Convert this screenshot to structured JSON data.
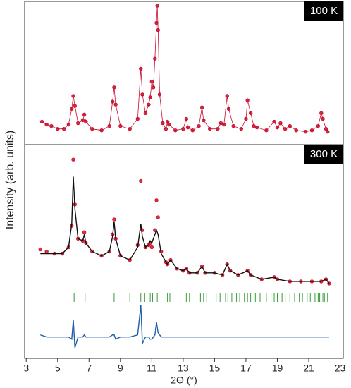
{
  "chart_data": [
    {
      "type": "scatter",
      "annotation": "100 K",
      "xlim": [
        2.9,
        23.2
      ],
      "ylim": [
        0,
        100
      ],
      "x": [
        4.0,
        4.3,
        4.6,
        5.0,
        5.4,
        5.7,
        5.9,
        6.0,
        6.1,
        6.3,
        6.6,
        6.7,
        6.8,
        7.2,
        7.8,
        8.3,
        8.5,
        8.6,
        8.7,
        9.0,
        9.6,
        10.1,
        10.3,
        10.4,
        10.6,
        10.8,
        10.9,
        11.0,
        11.1,
        11.2,
        11.3,
        11.35,
        11.4,
        11.5,
        11.7,
        11.9,
        12.0,
        12.1,
        12.5,
        13.0,
        13.2,
        13.3,
        13.6,
        14.0,
        14.2,
        14.3,
        14.7,
        15.2,
        15.4,
        15.6,
        15.8,
        15.9,
        16.2,
        16.7,
        17.0,
        17.1,
        17.3,
        17.5,
        17.7,
        18.3,
        18.8,
        19.0,
        19.2,
        19.5,
        19.8,
        20.2,
        20.8,
        21.2,
        21.6,
        21.8,
        21.9,
        22.1,
        22.2
      ],
      "series": [
        {
          "mode": "markers+lines",
          "color": "#c8102e",
          "values": [
            16,
            14,
            13,
            11,
            11,
            14,
            25,
            34,
            27,
            15,
            17,
            21,
            16,
            11,
            10,
            13,
            30,
            40,
            28,
            13,
            11,
            18,
            53,
            35,
            22,
            28,
            33,
            44,
            40,
            60,
            85,
            97,
            80,
            35,
            15,
            11,
            16,
            14,
            10,
            11,
            18,
            12,
            10,
            13,
            26,
            17,
            11,
            11,
            15,
            14,
            34,
            25,
            13,
            11,
            18,
            31,
            22,
            13,
            12,
            10,
            16,
            12,
            15,
            11,
            13,
            10,
            9,
            10,
            13,
            22,
            18,
            11,
            9
          ]
        }
      ]
    },
    {
      "type": "scatter",
      "annotation": "300 K",
      "xlabel": "2Θ (°)",
      "ylabel": "Intensity (arb. units)",
      "xlim": [
        2.9,
        23.2
      ],
      "xticks": [
        3,
        5,
        7,
        9,
        11,
        13,
        15,
        17,
        19,
        21,
        23
      ],
      "ylim": [
        0,
        100
      ],
      "x": [
        3.9,
        4.3,
        4.8,
        5.3,
        5.7,
        5.9,
        6.0,
        6.1,
        6.3,
        6.6,
        6.7,
        6.8,
        7.2,
        7.8,
        8.3,
        8.5,
        8.6,
        8.7,
        9.0,
        9.6,
        10.1,
        10.3,
        10.4,
        10.6,
        10.8,
        10.9,
        11.0,
        11.2,
        11.3,
        11.4,
        11.6,
        11.9,
        12.0,
        12.2,
        12.6,
        13.0,
        13.2,
        13.4,
        13.9,
        14.2,
        14.4,
        15.0,
        15.5,
        15.8,
        16.0,
        16.5,
        17.1,
        17.3,
        18.0,
        18.8,
        19.0,
        19.8,
        20.5,
        21.2,
        21.8,
        22.1,
        22.3
      ],
      "series": [
        {
          "mode": "markers",
          "color": "#d0142c",
          "values": [
            51,
            50,
            49,
            49,
            52,
            62,
            93,
            72,
            56,
            55,
            59,
            54,
            50,
            48,
            50,
            58,
            65,
            56,
            48,
            46,
            53,
            83,
            60,
            52,
            53,
            54,
            52,
            60,
            74,
            66,
            50,
            45,
            44,
            46,
            42,
            41,
            42,
            40,
            40,
            43,
            40,
            40,
            39,
            44,
            41,
            39,
            41,
            39,
            37,
            38,
            37,
            36,
            36,
            36,
            36,
            37,
            35
          ]
        },
        {
          "mode": "lines",
          "color": "#111111",
          "values": [
            49,
            49,
            49,
            49,
            52,
            63,
            85,
            70,
            56,
            55,
            58,
            54,
            50,
            48,
            50,
            57,
            64,
            56,
            48,
            46,
            52,
            63,
            57,
            52,
            53,
            55,
            54,
            58,
            60,
            58,
            49,
            45,
            44,
            46,
            42,
            41,
            42,
            40,
            40,
            43,
            40,
            40,
            39,
            44,
            41,
            39,
            41,
            39,
            37,
            38,
            37,
            36,
            36,
            36,
            36,
            37,
            35
          ]
        },
        {
          "mode": "lines",
          "color": "#1f5fa8",
          "values": [
            11,
            10,
            10,
            10,
            10,
            9,
            18,
            5,
            10,
            10,
            11,
            10,
            10,
            10,
            10,
            11,
            11,
            9,
            10,
            10,
            11,
            25,
            7,
            10,
            10,
            9,
            9,
            11,
            17,
            12,
            10,
            10,
            10,
            10,
            10,
            10,
            10,
            10,
            10,
            10,
            10,
            10,
            10,
            10,
            10,
            10,
            10,
            10,
            10,
            10,
            10,
            10,
            10,
            10,
            10,
            10,
            10
          ]
        }
      ],
      "reflections": {
        "color": "#3a9a3a",
        "x": [
          6.05,
          6.75,
          8.6,
          9.6,
          10.3,
          10.55,
          10.9,
          11.05,
          11.35,
          12.0,
          12.15,
          13.2,
          13.4,
          14.1,
          14.3,
          14.5,
          15.1,
          15.35,
          15.7,
          15.85,
          16.1,
          16.4,
          16.6,
          16.9,
          17.1,
          17.3,
          17.6,
          17.9,
          18.3,
          18.6,
          18.8,
          19.0,
          19.3,
          19.5,
          19.8,
          20.1,
          20.4,
          20.6,
          20.9,
          21.1,
          21.4,
          21.6,
          21.7,
          21.9,
          22.0,
          22.1,
          22.2
        ]
      }
    }
  ]
}
